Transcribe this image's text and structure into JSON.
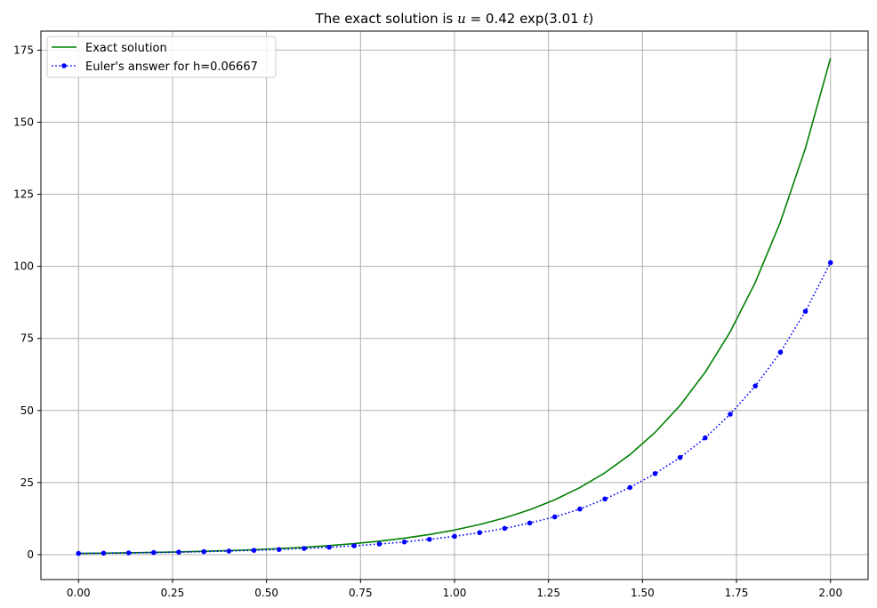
{
  "chart_data": {
    "type": "line",
    "title": "The exact solution is u = 0.42 exp(3.01 t)",
    "title_parts": {
      "prefix": "The exact solution is ",
      "var": "u",
      "mid": " = 0.42 exp(3.01 ",
      "var2": "t",
      "suffix": ")"
    },
    "xlabel": "",
    "ylabel": "",
    "xlim": [
      -0.1,
      2.1
    ],
    "ylim": [
      -8.65,
      181.6
    ],
    "xticks": [
      0.0,
      0.25,
      0.5,
      0.75,
      1.0,
      1.25,
      1.5,
      1.75,
      2.0
    ],
    "xtick_labels": [
      "0.00",
      "0.25",
      "0.50",
      "0.75",
      "1.00",
      "1.25",
      "1.50",
      "1.75",
      "2.00"
    ],
    "yticks": [
      0,
      25,
      50,
      75,
      100,
      125,
      150,
      175
    ],
    "ytick_labels": [
      "0",
      "25",
      "50",
      "75",
      "100",
      "125",
      "150",
      "175"
    ],
    "grid": true,
    "legend_position": "upper-left",
    "series": [
      {
        "name": "Exact solution",
        "style": "solid",
        "color": "#008000",
        "marker": "none",
        "x": [
          0.0,
          0.0667,
          0.1333,
          0.2,
          0.2667,
          0.3333,
          0.4,
          0.4667,
          0.5333,
          0.6,
          0.6667,
          0.7333,
          0.8,
          0.8667,
          0.9333,
          1.0,
          1.0667,
          1.1333,
          1.2,
          1.2667,
          1.3333,
          1.4,
          1.4667,
          1.5333,
          1.6,
          1.6667,
          1.7333,
          1.8,
          1.8667,
          1.9333,
          2.0
        ],
        "y": [
          0.42,
          0.51,
          0.63,
          0.77,
          0.94,
          1.15,
          1.4,
          1.72,
          2.1,
          2.56,
          3.13,
          3.83,
          4.68,
          5.72,
          6.98,
          8.53,
          10.43,
          12.74,
          15.57,
          19.02,
          23.24,
          28.39,
          34.69,
          42.38,
          51.78,
          63.26,
          77.29,
          94.43,
          115.38,
          140.96,
          172.22
        ]
      },
      {
        "name": "Euler's answer for h=0.06667",
        "style": "dotted",
        "color": "#0000ff",
        "marker": "circle",
        "x": [
          0.0,
          0.0667,
          0.1333,
          0.2,
          0.2667,
          0.3333,
          0.4,
          0.4667,
          0.5333,
          0.6,
          0.6667,
          0.7333,
          0.8,
          0.8667,
          0.9333,
          1.0,
          1.0667,
          1.1333,
          1.2,
          1.2667,
          1.3333,
          1.4,
          1.4667,
          1.5333,
          1.6,
          1.6667,
          1.7333,
          1.8,
          1.8667,
          1.9333,
          2.0
        ],
        "y": [
          0.42,
          0.5,
          0.6,
          0.72,
          0.86,
          1.03,
          1.24,
          1.48,
          1.78,
          2.13,
          2.56,
          3.07,
          3.68,
          4.4,
          5.29,
          6.35,
          7.62,
          9.1,
          10.95,
          13.1,
          15.8,
          19.3,
          23.3,
          28.1,
          33.7,
          40.5,
          48.7,
          58.5,
          70.2,
          84.4,
          101.3
        ]
      }
    ]
  }
}
